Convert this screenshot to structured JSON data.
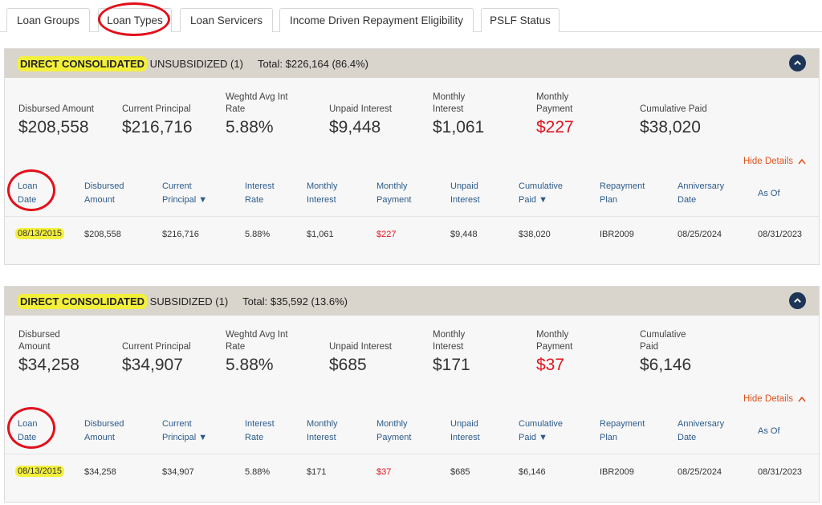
{
  "tabs": [
    {
      "label": "Loan Groups"
    },
    {
      "label": "Loan Types"
    },
    {
      "label": "Loan Servicers"
    },
    {
      "label": "Income Driven Repayment Eligibility"
    },
    {
      "label": "PSLF Status"
    }
  ],
  "sections": [
    {
      "title_highlight": "DIRECT CONSOLIDATED",
      "title_rest": " UNSUBSIDIZED (1)",
      "total": "Total: $226,164 (86.4%)",
      "summary": [
        {
          "label": "Disbursed Amount",
          "value": "$208,558"
        },
        {
          "label": "Current Principal",
          "value": "$216,716"
        },
        {
          "label": "Weghtd Avg Int Rate",
          "value": "5.88%"
        },
        {
          "label": "Unpaid Interest",
          "value": "$9,448"
        },
        {
          "label": "Monthly Interest",
          "value": "$1,061"
        },
        {
          "label": "Monthly Payment",
          "value": "$227"
        },
        {
          "label": "Cumulative Paid",
          "value": "$38,020"
        }
      ],
      "hide_details": "Hide Details",
      "columns": [
        "Loan Date",
        "Disbursed Amount",
        "Current Principal ▼",
        "Interest Rate",
        "Monthly Interest",
        "Monthly Payment",
        "Unpaid Interest",
        "Cumulative Paid ▼",
        "Repayment Plan",
        "Anniversary Date",
        "As Of"
      ],
      "row": [
        "08/13/2015",
        "$208,558",
        "$216,716",
        "5.88%",
        "$1,061",
        "$227",
        "$9,448",
        "$38,020",
        "IBR2009",
        "08/25/2024",
        "08/31/2023"
      ]
    },
    {
      "title_highlight": "DIRECT CONSOLIDATED",
      "title_rest": " SUBSIDIZED (1)",
      "total": "Total: $35,592 (13.6%)",
      "summary": [
        {
          "label": "Disbursed Amount",
          "value": "$34,258"
        },
        {
          "label": "Current Principal",
          "value": "$34,907"
        },
        {
          "label": "Weghtd Avg Int Rate",
          "value": "5.88%"
        },
        {
          "label": "Unpaid Interest",
          "value": "$685"
        },
        {
          "label": "Monthly Interest",
          "value": "$171"
        },
        {
          "label": "Monthly Payment",
          "value": "$37"
        },
        {
          "label": "Cumulative Paid",
          "value": "$6,146"
        }
      ],
      "hide_details": "Hide Details",
      "columns": [
        "Loan Date",
        "Disbursed Amount",
        "Current Principal ▼",
        "Interest Rate",
        "Monthly Interest",
        "Monthly Payment",
        "Unpaid Interest",
        "Cumulative Paid ▼",
        "Repayment Plan",
        "Anniversary Date",
        "As Of"
      ],
      "row": [
        "08/13/2015",
        "$34,258",
        "$34,907",
        "5.88%",
        "$171",
        "$37",
        "$685",
        "$6,146",
        "IBR2009",
        "08/25/2024",
        "08/31/2023"
      ]
    }
  ],
  "colors": {
    "accent_red": "#e0161f",
    "header_blue": "#2d5b8a",
    "highlight": "#f3f03c",
    "annotation": "#e3101a"
  }
}
